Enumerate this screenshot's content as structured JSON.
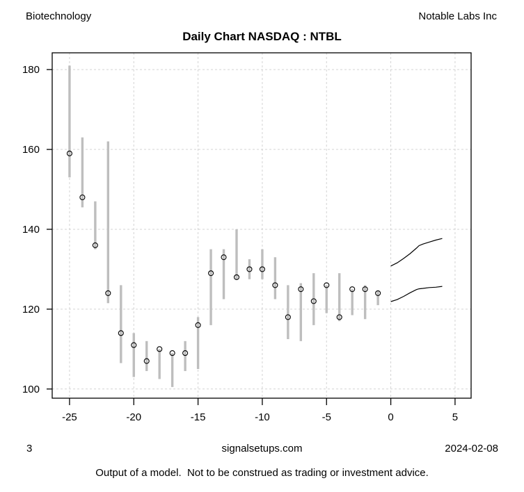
{
  "header": {
    "sector": "Biotechnology",
    "company": "Notable Labs Inc",
    "title": "Daily Chart NASDAQ : NTBL"
  },
  "footer": {
    "page_number": "3",
    "website": "signalsetups.com",
    "date": "2024-02-08",
    "disclaimer": "Output of a model.  Not to be construed as trading or investment advice."
  },
  "chart_data": {
    "type": "bar",
    "subtype": "high-low-close-range-bars-with-forecast-lines",
    "title": "Daily Chart NASDAQ : NTBL",
    "xlabel": "",
    "ylabel": "",
    "grid": true,
    "legend": "none",
    "x_axis": {
      "tick_labels": [
        "-25",
        "-20",
        "-15",
        "-10",
        "-5",
        "0",
        "5"
      ],
      "range": [
        -26.35,
        6.25
      ]
    },
    "y_axis": {
      "tick_labels": [
        "100",
        "120",
        "140",
        "160",
        "180"
      ],
      "range": [
        97.7,
        184.2
      ]
    },
    "bars": [
      {
        "x": -25,
        "high": 181,
        "low": 153,
        "close": 159
      },
      {
        "x": -24,
        "high": 163,
        "low": 145.5,
        "close": 148
      },
      {
        "x": -23,
        "high": 147,
        "low": 135,
        "close": 136
      },
      {
        "x": -22,
        "high": 162,
        "low": 121.5,
        "close": 124
      },
      {
        "x": -21,
        "high": 126,
        "low": 106.5,
        "close": 114
      },
      {
        "x": -20,
        "high": 114,
        "low": 103,
        "close": 111
      },
      {
        "x": -19,
        "high": 112,
        "low": 104.5,
        "close": 107
      },
      {
        "x": -18,
        "high": 110,
        "low": 102.5,
        "close": 110
      },
      {
        "x": -17,
        "high": 109,
        "low": 100.5,
        "close": 109
      },
      {
        "x": -16,
        "high": 112,
        "low": 104.5,
        "close": 109
      },
      {
        "x": -15,
        "high": 118,
        "low": 105,
        "close": 116
      },
      {
        "x": -14,
        "high": 135,
        "low": 116,
        "close": 129
      },
      {
        "x": -13,
        "high": 135,
        "low": 122.5,
        "close": 133
      },
      {
        "x": -12,
        "high": 140,
        "low": 127.5,
        "close": 128
      },
      {
        "x": -11,
        "high": 132.5,
        "low": 127.5,
        "close": 130
      },
      {
        "x": -10,
        "high": 135,
        "low": 127.5,
        "close": 130
      },
      {
        "x": -9,
        "high": 133,
        "low": 122.5,
        "close": 126
      },
      {
        "x": -8,
        "high": 126,
        "low": 112.5,
        "close": 118
      },
      {
        "x": -7,
        "high": 126.5,
        "low": 112,
        "close": 125
      },
      {
        "x": -6,
        "high": 129,
        "low": 116,
        "close": 122
      },
      {
        "x": -5,
        "high": 126,
        "low": 119,
        "close": 126
      },
      {
        "x": -4,
        "high": 129,
        "low": 117,
        "close": 118
      },
      {
        "x": -3,
        "high": 125,
        "low": 118.5,
        "close": 125
      },
      {
        "x": -2,
        "high": 126,
        "low": 117.5,
        "close": 125
      },
      {
        "x": -1,
        "high": 124.5,
        "low": 121,
        "close": 124
      }
    ],
    "forecast_lines": [
      {
        "name": "upper",
        "points": [
          [
            0,
            130.8
          ],
          [
            0.5,
            131.6
          ],
          [
            1,
            132.7
          ],
          [
            1.5,
            133.9
          ],
          [
            2,
            135.3
          ],
          [
            2.2,
            135.9
          ],
          [
            2.5,
            136.3
          ],
          [
            3,
            136.8
          ],
          [
            3.5,
            137.3
          ],
          [
            4,
            137.7
          ]
        ]
      },
      {
        "name": "lower",
        "points": [
          [
            0,
            121.9
          ],
          [
            0.5,
            122.4
          ],
          [
            1,
            123.2
          ],
          [
            1.5,
            124.1
          ],
          [
            2,
            124.9
          ],
          [
            2.2,
            125.1
          ],
          [
            2.5,
            125.2
          ],
          [
            3,
            125.4
          ],
          [
            3.5,
            125.5
          ],
          [
            4,
            125.7
          ]
        ]
      }
    ],
    "colors": {
      "bar": "#bebebe",
      "grid": "#d3d3d3",
      "axis": "#000000",
      "close_marker": "#000000",
      "forecast": "#000000",
      "background": "#ffffff"
    }
  }
}
